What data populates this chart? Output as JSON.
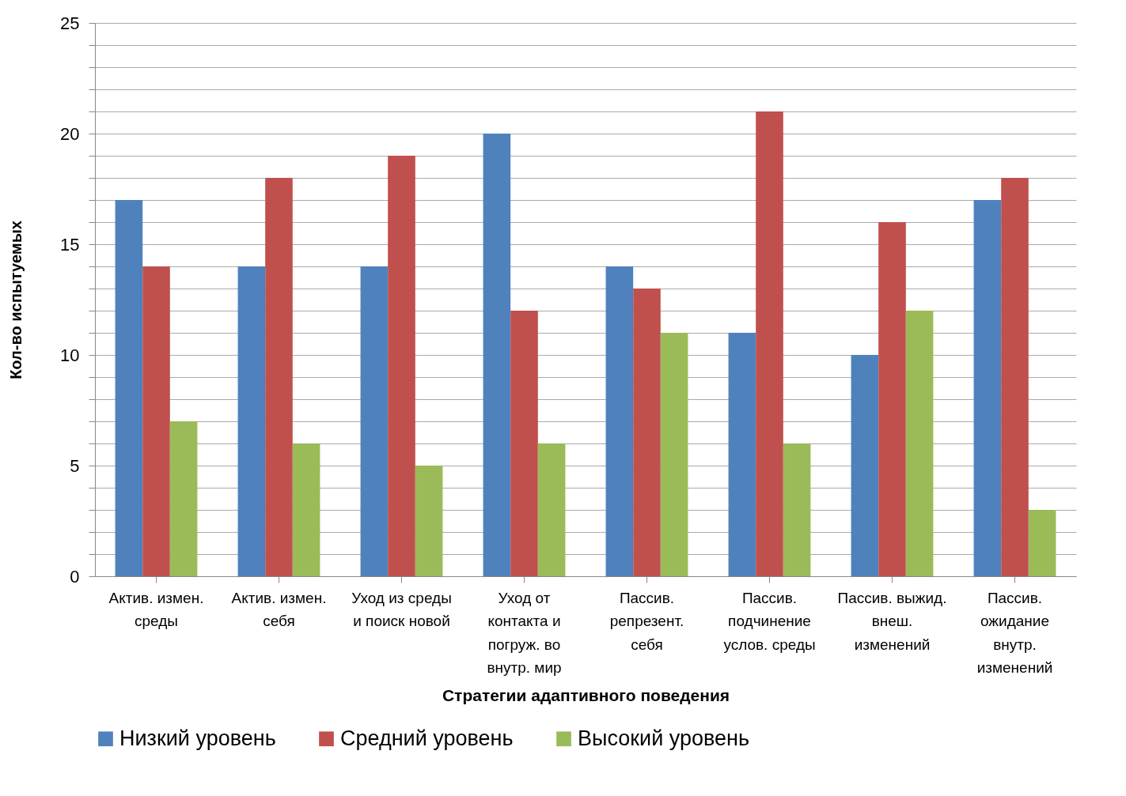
{
  "chart_data": {
    "type": "bar",
    "xlabel": "Стратегии адаптивного поведения",
    "ylabel": "Кол-во испытуемых",
    "categories": [
      "Актив. измен. среды",
      "Актив. измен. себя",
      "Уход из среды и поиск новой",
      "Уход от контакта и погруж. во внутр. мир",
      "Пассив. репрезент. себя",
      "Пассив. подчинение услов. среды",
      "Пассив. выжид. внеш. изменений",
      "Пассив. ожидание внутр. изменений"
    ],
    "series": [
      {
        "name": "Низкий уровень",
        "color": "#4f81bd",
        "values": [
          17,
          14,
          14,
          20,
          14,
          11,
          10,
          17
        ]
      },
      {
        "name": "Средний уровень",
        "color": "#c0504d",
        "values": [
          14,
          18,
          19,
          12,
          13,
          21,
          16,
          18
        ]
      },
      {
        "name": "Высокий уровень",
        "color": "#9bbb59",
        "values": [
          7,
          6,
          5,
          6,
          11,
          6,
          12,
          3
        ]
      }
    ],
    "ylim": [
      0,
      25
    ],
    "yticks": [
      0,
      {
        "value": 1,
        "label": null
      },
      {
        "value": 2,
        "label": null
      },
      {
        "value": 3,
        "label": null
      },
      {
        "value": 4,
        "label": null
      },
      5,
      {
        "value": 6,
        "label": null
      },
      {
        "value": 7,
        "label": null
      },
      {
        "value": 8,
        "label": null
      },
      {
        "value": 9,
        "label": null
      },
      10,
      {
        "value": 11,
        "label": null
      },
      {
        "value": 12,
        "label": null
      },
      {
        "value": 13,
        "label": null
      },
      {
        "value": 14,
        "label": null
      },
      15,
      {
        "value": 16,
        "label": null
      },
      {
        "value": 17,
        "label": null
      },
      {
        "value": 18,
        "label": null
      },
      {
        "value": 19,
        "label": null
      },
      20,
      {
        "value": 21,
        "label": null
      },
      {
        "value": 22,
        "label": null
      },
      {
        "value": 23,
        "label": null
      },
      {
        "value": 24,
        "label": null
      },
      25
    ],
    "grid": "y",
    "legend": "bottom"
  }
}
